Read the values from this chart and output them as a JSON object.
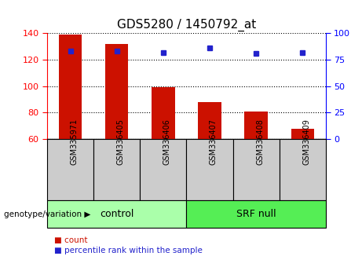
{
  "title": "GDS5280 / 1450792_at",
  "samples": [
    "GSM335971",
    "GSM336405",
    "GSM336406",
    "GSM336407",
    "GSM336408",
    "GSM336409"
  ],
  "count_values": [
    139,
    132,
    99,
    88,
    81,
    68
  ],
  "percentile_values": [
    83,
    83,
    82,
    86,
    81,
    82
  ],
  "ylim_left": [
    60,
    140
  ],
  "yticks_left": [
    60,
    80,
    100,
    120,
    140
  ],
  "ylim_right": [
    0,
    100
  ],
  "yticks_right": [
    0,
    25,
    50,
    75,
    100
  ],
  "bar_color": "#cc1100",
  "dot_color": "#2222cc",
  "groups": [
    {
      "label": "control",
      "indices": [
        0,
        1,
        2
      ],
      "color": "#aaffaa"
    },
    {
      "label": "SRF null",
      "indices": [
        3,
        4,
        5
      ],
      "color": "#55ee55"
    }
  ],
  "grid_linestyle": "dotted",
  "grid_color": "black",
  "sample_box_color": "#cccccc",
  "legend_count_label": "count",
  "legend_percentile_label": "percentile rank within the sample",
  "genotype_label": "genotype/variation"
}
